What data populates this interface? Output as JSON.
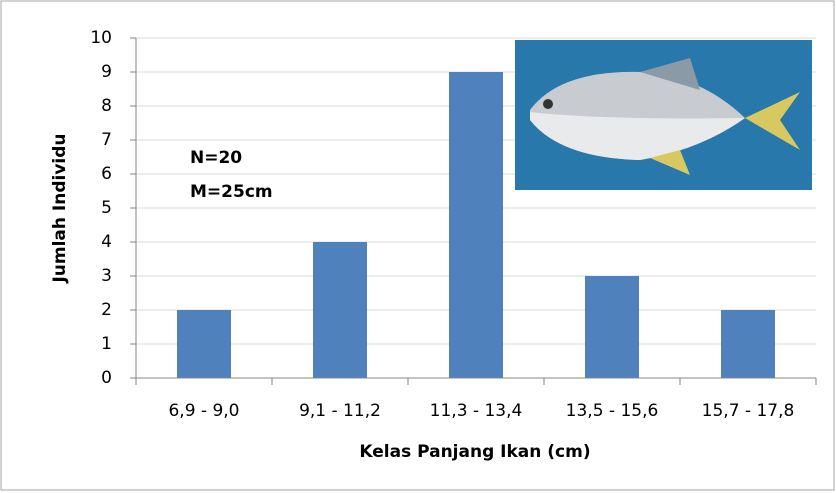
{
  "chart_data": {
    "type": "bar",
    "x_label": "Kelas Panjang Ikan (cm)",
    "y_label": "Jumlah Individu",
    "categories": [
      "6,9 - 9,0",
      "9,1 - 11,2",
      "11,3 - 13,4",
      "13,5 - 15,6",
      "15,7 - 17,8"
    ],
    "values": [
      2,
      4,
      9,
      3,
      2
    ],
    "color": "#4f81bd",
    "ylim": [
      0,
      10
    ],
    "yticks": [
      0,
      1,
      2,
      3,
      4,
      5,
      6,
      7,
      8,
      9,
      10
    ],
    "grid": true,
    "annotations": [
      "N=20",
      "M=25cm"
    ]
  }
}
